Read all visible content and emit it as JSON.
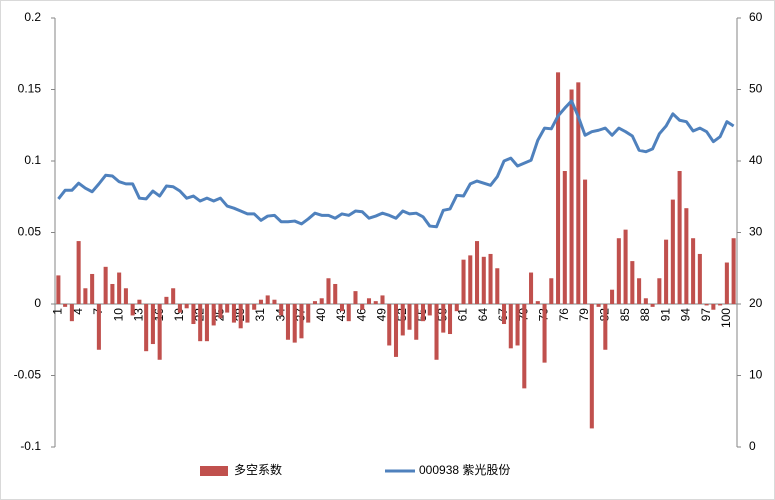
{
  "chart_data": {
    "type": "bar",
    "categories": [
      "1",
      null,
      null,
      "4",
      null,
      null,
      "7",
      null,
      null,
      "10",
      null,
      null,
      "13",
      null,
      null,
      "16",
      null,
      null,
      "19",
      null,
      null,
      "22",
      null,
      null,
      "25",
      null,
      null,
      "28",
      null,
      null,
      "31",
      null,
      null,
      "34",
      null,
      null,
      "37",
      null,
      null,
      "40",
      null,
      null,
      "43",
      null,
      null,
      "46",
      null,
      null,
      "49",
      null,
      null,
      "52",
      null,
      null,
      "55",
      null,
      null,
      "58",
      null,
      null,
      "61",
      null,
      null,
      "64",
      null,
      null,
      "67",
      null,
      null,
      "70",
      null,
      null,
      "73",
      null,
      null,
      "76",
      null,
      null,
      "79",
      null,
      null,
      "82",
      null,
      null,
      "85",
      null,
      null,
      "88",
      null,
      null,
      "91",
      null,
      null,
      "94",
      null,
      null,
      "97",
      null,
      null,
      "100",
      null
    ],
    "series": [
      {
        "name": "多空系数",
        "type": "bar",
        "color": "#c0504d",
        "values": [
          0.02,
          -0.002,
          -0.012,
          0.044,
          0.011,
          0.021,
          -0.032,
          0.026,
          0.014,
          0.022,
          0.011,
          -0.008,
          0.003,
          -0.033,
          -0.028,
          -0.039,
          0.005,
          0.011,
          -0.006,
          -0.003,
          -0.014,
          -0.026,
          -0.026,
          -0.015,
          -0.01,
          -0.006,
          -0.013,
          -0.017,
          -0.013,
          -0.004,
          0.003,
          0.006,
          0.003,
          -0.008,
          -0.025,
          -0.027,
          -0.024,
          -0.013,
          0.002,
          0.004,
          0.018,
          0.014,
          -0.005,
          -0.012,
          0.009,
          -0.004,
          0.004,
          0.002,
          0.006,
          -0.029,
          -0.037,
          -0.022,
          -0.018,
          -0.025,
          -0.012,
          -0.008,
          -0.039,
          -0.02,
          -0.021,
          -0.005,
          0.031,
          0.034,
          0.044,
          0.033,
          0.035,
          0.025,
          -0.014,
          -0.031,
          -0.029,
          -0.059,
          0.022,
          0.002,
          -0.041,
          0.018,
          0.162,
          0.093,
          0.15,
          0.155,
          0.087,
          -0.087,
          -0.002,
          -0.032,
          0.01,
          0.046,
          0.052,
          0.03,
          0.018,
          0.004,
          -0.002,
          0.018,
          0.045,
          0.073,
          0.093,
          0.067,
          0.046,
          0.035,
          -0.001,
          -0.004,
          -0.001,
          0.029,
          0.046
        ]
      },
      {
        "name": "000938 紫光股份",
        "type": "line",
        "axis": "y2",
        "color": "#4f81bd",
        "values": [
          34.7,
          35.9,
          35.9,
          36.9,
          36.2,
          35.7,
          36.8,
          38.0,
          37.9,
          37.1,
          36.8,
          36.8,
          34.8,
          34.7,
          35.8,
          35.1,
          36.5,
          36.4,
          35.8,
          34.8,
          35.1,
          34.4,
          34.8,
          34.4,
          34.8,
          33.7,
          33.4,
          33.0,
          32.6,
          32.6,
          31.7,
          32.3,
          32.4,
          31.5,
          31.5,
          31.6,
          31.2,
          31.9,
          32.7,
          32.4,
          32.4,
          32.0,
          32.6,
          32.4,
          33.0,
          32.9,
          32.0,
          32.3,
          32.7,
          32.4,
          32.0,
          33.0,
          32.6,
          32.7,
          32.2,
          30.9,
          30.8,
          33.1,
          33.3,
          35.2,
          35.1,
          36.8,
          37.2,
          36.9,
          36.6,
          37.8,
          40.0,
          40.4,
          39.3,
          39.7,
          40.1,
          42.9,
          44.6,
          44.5,
          46.3,
          47.4,
          48.4,
          46.2,
          43.6,
          44.1,
          44.3,
          44.6,
          43.6,
          44.6,
          44.1,
          43.5,
          41.5,
          41.3,
          41.7,
          43.8,
          44.9,
          46.6,
          45.7,
          45.5,
          44.2,
          44.6,
          44.1,
          42.7,
          43.4,
          45.5,
          44.9
        ]
      }
    ],
    "ylim": [
      -0.1,
      0.2
    ],
    "yticks": [
      -0.1,
      -0.05,
      0,
      0.05,
      0.1,
      0.15,
      0.2
    ],
    "y2lim": [
      0,
      60
    ],
    "y2ticks": [
      0,
      10,
      20,
      30,
      40,
      50,
      60
    ],
    "legend": "bottom"
  }
}
